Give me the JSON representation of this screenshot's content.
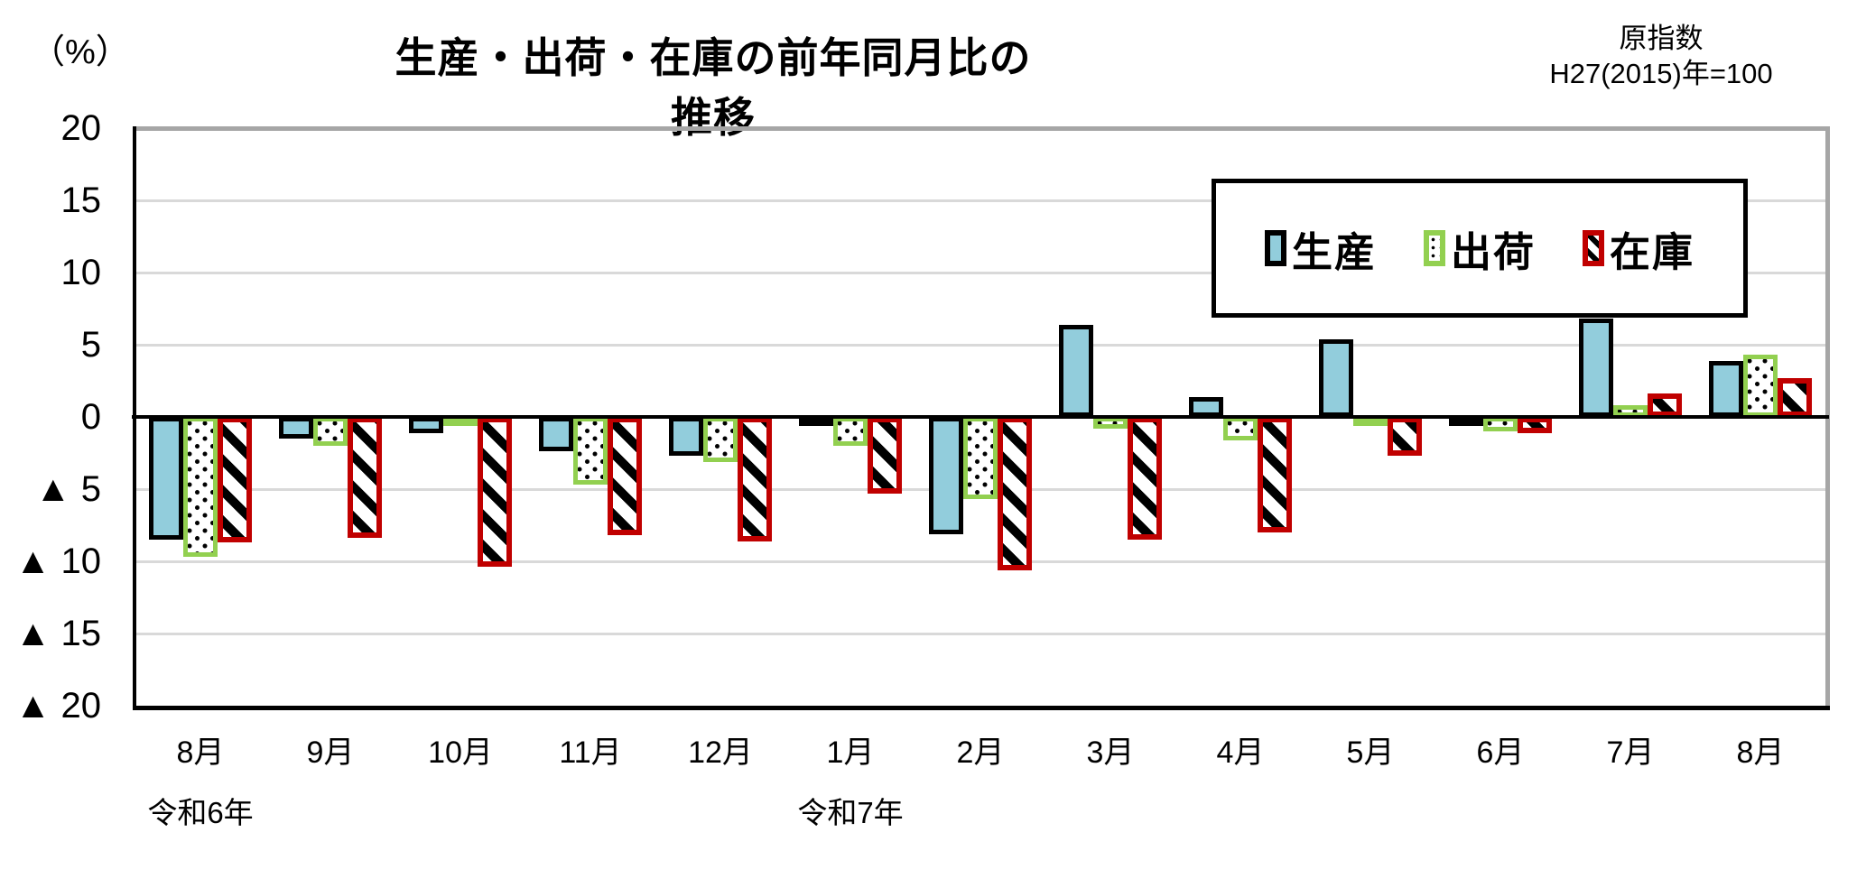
{
  "header": {
    "unit_label": "（%）",
    "title": "生産・出荷・在庫の前年同月比の推移",
    "index_note_line1": "原指数",
    "index_note_line2": "H27(2015)年=100"
  },
  "legend": {
    "items": [
      {
        "label": "生産",
        "series": "production"
      },
      {
        "label": "出荷",
        "series": "shipment"
      },
      {
        "label": "在庫",
        "series": "inventory"
      }
    ]
  },
  "colors": {
    "production_fill": "#92cddc",
    "production_border": "#000000",
    "shipment_border": "#92d050",
    "inventory_border": "#c00000",
    "gridline": "#d9d9d9",
    "plot_border": "#a6a6a6",
    "axis_line": "#000000"
  },
  "y_axis": {
    "ticks": [
      {
        "label": "20",
        "value": 20
      },
      {
        "label": "15",
        "value": 15
      },
      {
        "label": "10",
        "value": 10
      },
      {
        "label": "5",
        "value": 5
      },
      {
        "label": "0",
        "value": 0
      },
      {
        "label": "▲ 5",
        "value": -5
      },
      {
        "label": "▲ 10",
        "value": -10
      },
      {
        "label": "▲ 15",
        "value": -15
      },
      {
        "label": "▲ 20",
        "value": -20
      }
    ]
  },
  "chart_data": {
    "type": "bar",
    "title": "生産・出荷・在庫の前年同月比の推移",
    "ylabel": "（%）",
    "ylim": [
      -20,
      20
    ],
    "ytick_step": 5,
    "grid": true,
    "legend_position": "top-right",
    "negative_marker": "▲",
    "categories": [
      "8月",
      "9月",
      "10月",
      "11月",
      "12月",
      "1月",
      "2月",
      "3月",
      "4月",
      "5月",
      "6月",
      "7月",
      "8月"
    ],
    "era_labels": [
      {
        "text": "令和6年",
        "slot": 0
      },
      {
        "text": "令和7年",
        "slot": 5
      }
    ],
    "series": [
      {
        "name": "生産",
        "values": [
          -8.5,
          -1.5,
          -1.1,
          -2.4,
          -2.7,
          -0.4,
          -8.1,
          6.4,
          1.4,
          5.4,
          -0.3,
          6.8,
          3.9
        ]
      },
      {
        "name": "出荷",
        "values": [
          -9.7,
          -2.0,
          -0.5,
          -4.7,
          -3.1,
          -2.0,
          -5.7,
          -0.8,
          -1.6,
          -0.5,
          -1.0,
          0.8,
          4.3
        ]
      },
      {
        "name": "在庫",
        "values": [
          -8.7,
          -8.4,
          -10.4,
          -8.2,
          -8.6,
          -5.3,
          -10.6,
          -8.5,
          -8.0,
          -2.7,
          -1.1,
          1.6,
          2.7
        ]
      }
    ]
  }
}
